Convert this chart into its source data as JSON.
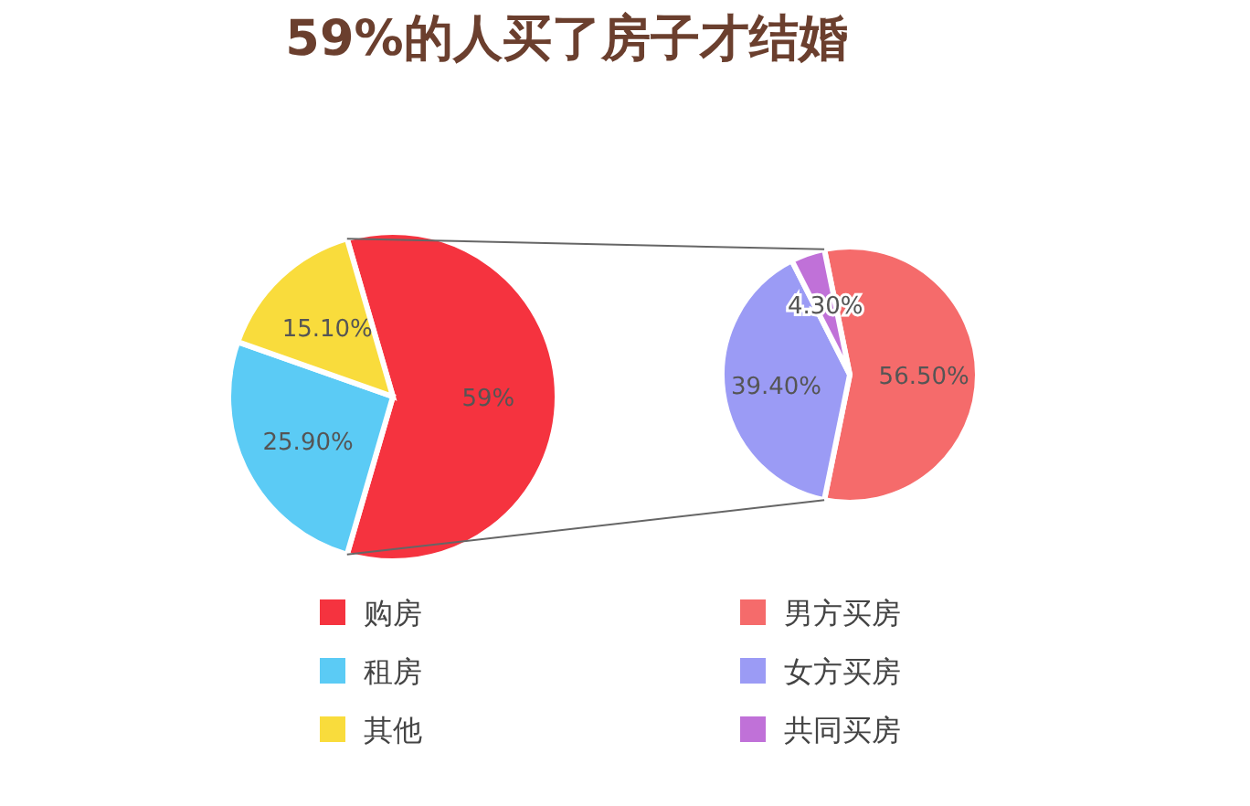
{
  "chart_data": [
    {
      "type": "pie",
      "title": "59%的人买了房子才结婚",
      "categories": [
        "购房",
        "租房",
        "其他"
      ],
      "values": [
        59,
        25.9,
        15.1
      ],
      "colors": [
        "#f5333f",
        "#5bcbf5",
        "#f9dc3c"
      ],
      "value_labels": [
        "59%",
        "25.90%",
        "15.10%"
      ],
      "legend": "bottom"
    },
    {
      "type": "pie",
      "categories": [
        "男方买房",
        "女方买房",
        "共同买房"
      ],
      "values": [
        56.5,
        39.4,
        4.3
      ],
      "colors": [
        "#f56b6b",
        "#9b9bf5",
        "#c071d8"
      ],
      "value_labels": [
        "56.50%",
        "39.40%",
        "4.30%"
      ],
      "legend": "bottom"
    }
  ]
}
